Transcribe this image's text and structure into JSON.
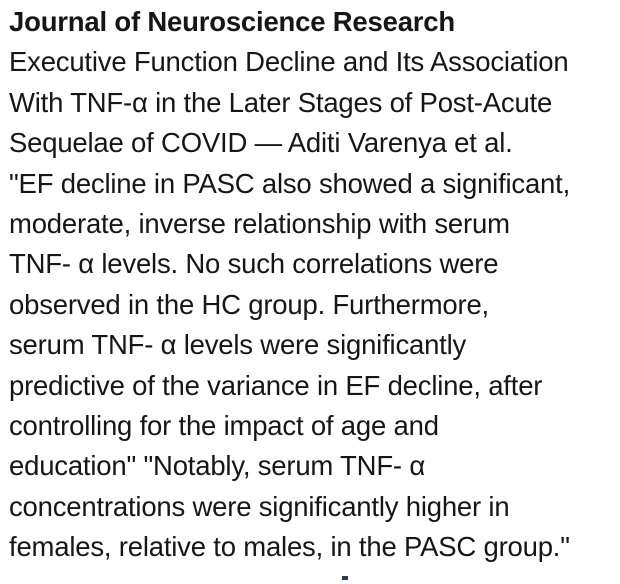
{
  "colors": {
    "background": "#ffffff",
    "text": "#161616"
  },
  "document": {
    "journal_title": "Journal of Neuroscience Research",
    "lines": [
      "Executive Function Decline and Its Association",
      "With TNF-α in the Later Stages of Post-Acute",
      "Sequelae of COVID — Aditi Varenya et al.",
      "\"EF decline in PASC also showed a significant,",
      "moderate, inverse relationship with serum",
      "TNF- α levels. No such correlations were",
      "observed in the HC group. Furthermore,",
      "serum TNF- α levels were significantly",
      "predictive of the variance in EF decline, after",
      "controlling for the impact of age and",
      "education\" \"Notably, serum TNF- α",
      "concentrations were significantly higher in",
      "females, relative to males, in the PASC group.\""
    ]
  }
}
